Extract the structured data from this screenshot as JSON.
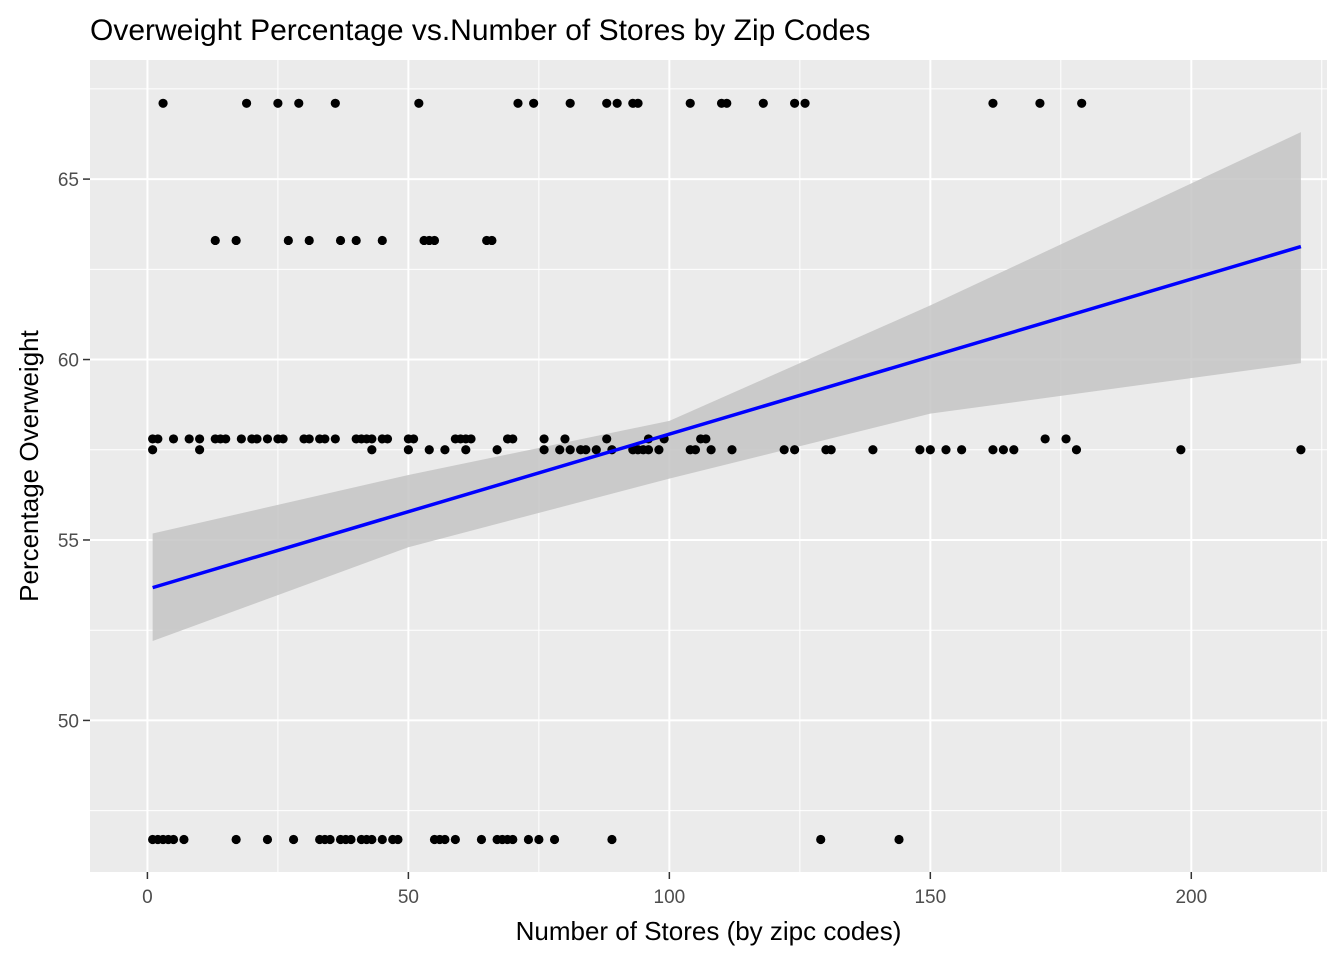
{
  "chart_data": {
    "type": "scatter",
    "title": "Overweight Percentage vs.Number of Stores by Zip Codes",
    "xlabel": "Number of Stores (by zipc codes)",
    "ylabel": "Percentage Overweight",
    "xlim": [
      -11,
      226
    ],
    "ylim": [
      45.8,
      68.3
    ],
    "xticks": [
      0,
      50,
      100,
      150,
      200
    ],
    "yticks": [
      50,
      55,
      60,
      65
    ],
    "grid": true,
    "legend": "none",
    "colors": {
      "panel": "#ebebeb",
      "grid_major": "#ffffff",
      "point": "#000000",
      "line": "#0000ff",
      "band": "#c4c4c4"
    },
    "series": [
      {
        "type": "scatter",
        "points": [
          [
            3,
            67.1
          ],
          [
            19,
            67.1
          ],
          [
            25,
            67.1
          ],
          [
            29,
            67.1
          ],
          [
            36,
            67.1
          ],
          [
            52,
            67.1
          ],
          [
            71,
            67.1
          ],
          [
            74,
            67.1
          ],
          [
            81,
            67.1
          ],
          [
            88,
            67.1
          ],
          [
            90,
            67.1
          ],
          [
            93,
            67.1
          ],
          [
            94,
            67.1
          ],
          [
            104,
            67.1
          ],
          [
            110,
            67.1
          ],
          [
            111,
            67.1
          ],
          [
            118,
            67.1
          ],
          [
            124,
            67.1
          ],
          [
            126,
            67.1
          ],
          [
            162,
            67.1
          ],
          [
            171,
            67.1
          ],
          [
            179,
            67.1
          ],
          [
            13,
            63.3
          ],
          [
            17,
            63.3
          ],
          [
            27,
            63.3
          ],
          [
            31,
            63.3
          ],
          [
            37,
            63.3
          ],
          [
            40,
            63.3
          ],
          [
            45,
            63.3
          ],
          [
            53,
            63.3
          ],
          [
            54,
            63.3
          ],
          [
            55,
            63.3
          ],
          [
            65,
            63.3
          ],
          [
            66,
            63.3
          ],
          [
            1,
            57.8
          ],
          [
            2,
            57.8
          ],
          [
            5,
            57.8
          ],
          [
            8,
            57.8
          ],
          [
            10,
            57.8
          ],
          [
            13,
            57.8
          ],
          [
            14,
            57.8
          ],
          [
            15,
            57.8
          ],
          [
            18,
            57.8
          ],
          [
            20,
            57.8
          ],
          [
            21,
            57.8
          ],
          [
            23,
            57.8
          ],
          [
            25,
            57.8
          ],
          [
            26,
            57.8
          ],
          [
            30,
            57.8
          ],
          [
            31,
            57.8
          ],
          [
            33,
            57.8
          ],
          [
            34,
            57.8
          ],
          [
            36,
            57.8
          ],
          [
            40,
            57.8
          ],
          [
            41,
            57.8
          ],
          [
            42,
            57.8
          ],
          [
            43,
            57.8
          ],
          [
            45,
            57.8
          ],
          [
            46,
            57.8
          ],
          [
            50,
            57.8
          ],
          [
            51,
            57.8
          ],
          [
            59,
            57.8
          ],
          [
            60,
            57.8
          ],
          [
            61,
            57.8
          ],
          [
            62,
            57.8
          ],
          [
            69,
            57.8
          ],
          [
            70,
            57.8
          ],
          [
            76,
            57.8
          ],
          [
            80,
            57.8
          ],
          [
            88,
            57.8
          ],
          [
            96,
            57.8
          ],
          [
            99,
            57.8
          ],
          [
            106,
            57.8
          ],
          [
            107,
            57.8
          ],
          [
            172,
            57.8
          ],
          [
            176,
            57.8
          ],
          [
            1,
            57.5
          ],
          [
            10,
            57.5
          ],
          [
            43,
            57.5
          ],
          [
            50,
            57.5
          ],
          [
            54,
            57.5
          ],
          [
            57,
            57.5
          ],
          [
            61,
            57.5
          ],
          [
            67,
            57.5
          ],
          [
            76,
            57.5
          ],
          [
            79,
            57.5
          ],
          [
            81,
            57.5
          ],
          [
            83,
            57.5
          ],
          [
            84,
            57.5
          ],
          [
            86,
            57.5
          ],
          [
            89,
            57.5
          ],
          [
            93,
            57.5
          ],
          [
            94,
            57.5
          ],
          [
            95,
            57.5
          ],
          [
            96,
            57.5
          ],
          [
            98,
            57.5
          ],
          [
            104,
            57.5
          ],
          [
            105,
            57.5
          ],
          [
            108,
            57.5
          ],
          [
            112,
            57.5
          ],
          [
            122,
            57.5
          ],
          [
            124,
            57.5
          ],
          [
            130,
            57.5
          ],
          [
            131,
            57.5
          ],
          [
            139,
            57.5
          ],
          [
            148,
            57.5
          ],
          [
            150,
            57.5
          ],
          [
            153,
            57.5
          ],
          [
            156,
            57.5
          ],
          [
            162,
            57.5
          ],
          [
            164,
            57.5
          ],
          [
            166,
            57.5
          ],
          [
            178,
            57.5
          ],
          [
            198,
            57.5
          ],
          [
            221,
            57.5
          ],
          [
            1,
            46.7
          ],
          [
            2,
            46.7
          ],
          [
            3,
            46.7
          ],
          [
            4,
            46.7
          ],
          [
            5,
            46.7
          ],
          [
            7,
            46.7
          ],
          [
            17,
            46.7
          ],
          [
            23,
            46.7
          ],
          [
            28,
            46.7
          ],
          [
            33,
            46.7
          ],
          [
            34,
            46.7
          ],
          [
            35,
            46.7
          ],
          [
            37,
            46.7
          ],
          [
            38,
            46.7
          ],
          [
            39,
            46.7
          ],
          [
            41,
            46.7
          ],
          [
            42,
            46.7
          ],
          [
            43,
            46.7
          ],
          [
            45,
            46.7
          ],
          [
            47,
            46.7
          ],
          [
            48,
            46.7
          ],
          [
            55,
            46.7
          ],
          [
            56,
            46.7
          ],
          [
            57,
            46.7
          ],
          [
            59,
            46.7
          ],
          [
            64,
            46.7
          ],
          [
            67,
            46.7
          ],
          [
            68,
            46.7
          ],
          [
            69,
            46.7
          ],
          [
            70,
            46.7
          ],
          [
            73,
            46.7
          ],
          [
            75,
            46.7
          ],
          [
            78,
            46.7
          ],
          [
            89,
            46.7
          ],
          [
            129,
            46.7
          ],
          [
            144,
            46.7
          ]
        ]
      },
      {
        "type": "line",
        "x": [
          1,
          221
        ],
        "y": [
          53.68,
          63.13
        ]
      },
      {
        "type": "band",
        "x": [
          1,
          50,
          100,
          150,
          221
        ],
        "upper": [
          55.18,
          56.8,
          58.3,
          61.5,
          66.3
        ],
        "lower": [
          52.2,
          54.8,
          56.7,
          58.5,
          59.9
        ]
      }
    ]
  }
}
